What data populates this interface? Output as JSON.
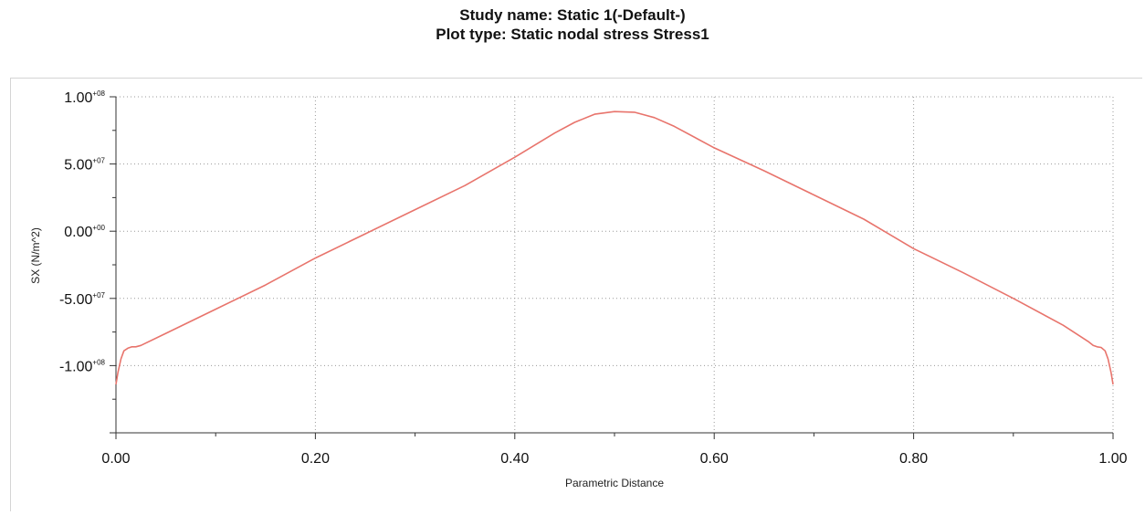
{
  "header": {
    "study_line": "Study name: Static 1(-Default-)",
    "plot_line": "Plot type: Static nodal stress Stress1"
  },
  "chart_data": {
    "type": "line",
    "title": "Study name: Static 1(-Default-)",
    "subtitle": "Plot type: Static nodal stress Stress1",
    "xlabel": "Parametric Distance",
    "ylabel": "SX (N/m^2)",
    "xlim": [
      0,
      1
    ],
    "ylim": [
      -150000000,
      100000000
    ],
    "x_ticks": [
      {
        "value": 0.0,
        "label": "0.00"
      },
      {
        "value": 0.2,
        "label": "0.20"
      },
      {
        "value": 0.4,
        "label": "0.40"
      },
      {
        "value": 0.6,
        "label": "0.60"
      },
      {
        "value": 0.8,
        "label": "0.80"
      },
      {
        "value": 1.0,
        "label": "1.00"
      }
    ],
    "y_ticks": [
      {
        "value": 100000000,
        "mantissa": "1.00",
        "exponent": "+08"
      },
      {
        "value": 50000000,
        "mantissa": "5.00",
        "exponent": "+07"
      },
      {
        "value": 0,
        "mantissa": "0.00",
        "exponent": "+00"
      },
      {
        "value": -50000000,
        "mantissa": "-5.00",
        "exponent": "+07"
      },
      {
        "value": -100000000,
        "mantissa": "-1.00",
        "exponent": "+08"
      }
    ],
    "grid": true,
    "grid_style": "dotted",
    "series": [
      {
        "color": "#e8746c",
        "x": [
          0.0,
          0.002,
          0.005,
          0.008,
          0.012,
          0.016,
          0.02,
          0.025,
          0.05,
          0.1,
          0.15,
          0.2,
          0.25,
          0.3,
          0.35,
          0.4,
          0.44,
          0.46,
          0.48,
          0.5,
          0.52,
          0.54,
          0.56,
          0.6,
          0.65,
          0.7,
          0.75,
          0.8,
          0.85,
          0.9,
          0.95,
          0.975,
          0.98,
          0.984,
          0.988,
          0.992,
          0.995,
          0.998,
          1.0
        ],
        "y": [
          -114000000,
          -105000000,
          -95000000,
          -89000000,
          -87000000,
          -86000000,
          -86000000,
          -85000000,
          -76000000,
          -58000000,
          -40000000,
          -20000000,
          -2000000,
          16000000,
          34000000,
          55000000,
          73000000,
          81000000,
          87000000,
          89000000,
          88500000,
          84500000,
          78000000,
          62000000,
          45000000,
          27000000,
          9000000,
          -13000000,
          -31000000,
          -50000000,
          -70000000,
          -82000000,
          -85000000,
          -86000000,
          -86500000,
          -89000000,
          -95000000,
          -105000000,
          -114000000
        ]
      }
    ]
  }
}
